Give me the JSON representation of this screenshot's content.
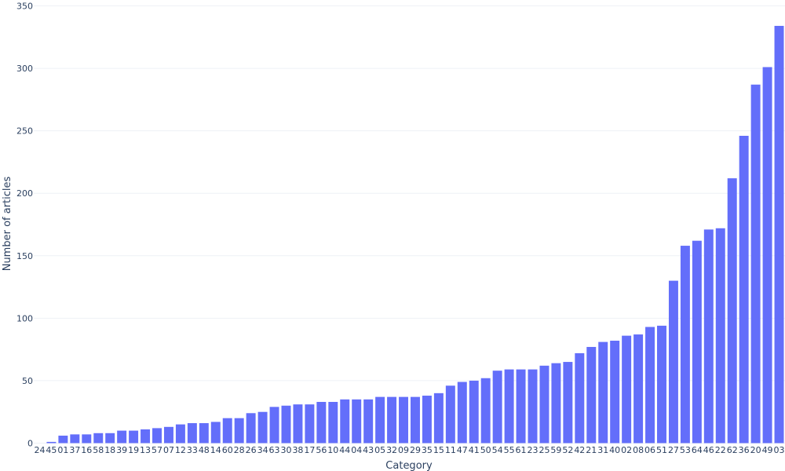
{
  "chart_data": {
    "type": "bar",
    "title": "",
    "xlabel": "Category",
    "ylabel": "Number of articles",
    "ylim": [
      0,
      350
    ],
    "yticks": [
      0,
      50,
      100,
      150,
      200,
      250,
      300,
      350
    ],
    "grid": true,
    "bar_color": "#636efa",
    "categories": [
      "24",
      "45",
      "01",
      "37",
      "16",
      "58",
      "18",
      "39",
      "19",
      "13",
      "57",
      "07",
      "12",
      "33",
      "48",
      "14",
      "60",
      "28",
      "26",
      "34",
      "63",
      "30",
      "38",
      "17",
      "56",
      "10",
      "44",
      "04",
      "43",
      "05",
      "32",
      "09",
      "29",
      "35",
      "15",
      "11",
      "47",
      "41",
      "50",
      "54",
      "55",
      "61",
      "23",
      "25",
      "59",
      "52",
      "42",
      "21",
      "31",
      "40",
      "02",
      "08",
      "06",
      "51",
      "27",
      "53",
      "64",
      "46",
      "22",
      "62",
      "36",
      "20",
      "49",
      "03"
    ],
    "values": [
      0,
      1,
      6,
      7,
      7,
      8,
      8,
      10,
      10,
      11,
      12,
      13,
      15,
      16,
      16,
      17,
      20,
      20,
      24,
      25,
      29,
      30,
      31,
      31,
      33,
      33,
      35,
      35,
      35,
      37,
      37,
      37,
      37,
      38,
      40,
      46,
      49,
      50,
      52,
      58,
      59,
      59,
      59,
      62,
      64,
      65,
      72,
      77,
      81,
      82,
      86,
      87,
      93,
      94,
      130,
      158,
      162,
      171,
      172,
      212,
      246,
      287,
      301,
      334
    ]
  }
}
